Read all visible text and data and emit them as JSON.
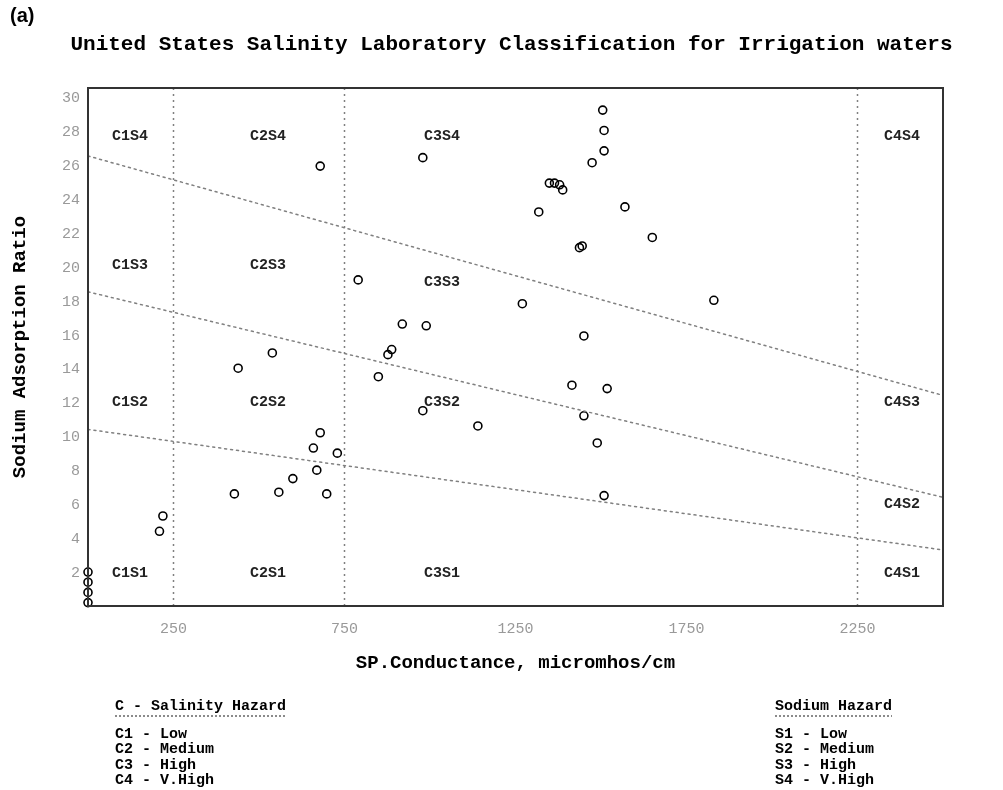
{
  "chart_data": {
    "type": "scatter",
    "title": "United States Salinity Laboratory Classification for Irrigation waters",
    "xlabel": "SP.Conductance, micromhos/cm",
    "ylabel": "Sodium Adsorption Ratio",
    "xlim": [
      0,
      2500
    ],
    "xticks": [
      250,
      750,
      1250,
      1750,
      2250
    ],
    "ylim": [
      0,
      30.5
    ],
    "yticks": [
      2,
      4,
      6,
      8,
      10,
      12,
      14,
      16,
      18,
      20,
      22,
      24,
      26,
      28,
      30
    ],
    "grid": false,
    "marker": "circle",
    "series": [
      {
        "color": "#000000",
        "x": [
          0,
          0,
          0,
          0,
          209,
          219,
          428,
          439,
          539,
          558,
          599,
          659,
          669,
          679,
          679,
          698,
          729,
          790,
          849,
          877,
          888,
          919,
          979,
          979,
          989,
          1140,
          1270,
          1318,
          1349,
          1364,
          1379,
          1388,
          1415,
          1437,
          1445,
          1450,
          1450,
          1474,
          1489,
          1505,
          1509,
          1509,
          1509,
          1518,
          1570,
          1650,
          1830
        ],
        "values": [
          2.0,
          1.4,
          0.8,
          0.2,
          4.4,
          5.3,
          6.6,
          14.0,
          14.9,
          6.7,
          7.5,
          9.3,
          8.0,
          25.9,
          10.2,
          6.6,
          9.0,
          19.2,
          13.5,
          14.8,
          15.1,
          16.6,
          26.4,
          11.5,
          16.5,
          10.6,
          17.8,
          23.2,
          24.9,
          24.9,
          24.8,
          24.5,
          13.0,
          21.1,
          21.2,
          15.9,
          11.2,
          26.1,
          9.6,
          29.2,
          28.0,
          26.8,
          6.5,
          12.8,
          23.5,
          21.7,
          18.0
        ]
      },
      {
        "type": "line",
        "color": "#808080",
        "line_style": "dotted",
        "marker": "none",
        "x": [
          0,
          2500
        ],
        "values": [
          26.5,
          12.4
        ]
      },
      {
        "type": "line",
        "color": "#808080",
        "line_style": "dotted",
        "marker": "none",
        "x": [
          0,
          2500
        ],
        "values": [
          18.5,
          6.4
        ]
      },
      {
        "type": "line",
        "color": "#808080",
        "line_style": "dotted",
        "marker": "none",
        "x": [
          0,
          2500
        ],
        "values": [
          10.4,
          3.3
        ]
      }
    ],
    "ref_lines": [
      {
        "axis": "x",
        "value": 250,
        "color": "#808080",
        "line_style": "dotted"
      },
      {
        "axis": "x",
        "value": 750,
        "color": "#808080",
        "line_style": "dotted"
      },
      {
        "axis": "x",
        "value": 2250,
        "color": "#808080",
        "line_style": "dotted"
      }
    ],
    "annotations": [
      "(a)",
      "C1S4",
      "C2S4",
      "C3S4",
      "C4S4",
      "C1S3",
      "C2S3",
      "C3S3",
      "C1S2",
      "C2S2",
      "C3S2",
      "C4S3",
      "C4S2",
      "C1S1",
      "C2S1",
      "C3S1",
      "C4S1",
      "C - Salinity Hazard",
      "C1 - Low",
      "C2 - Medium",
      "C3 - High",
      "C4 - V.High",
      "Sodium Hazard",
      "S1 - Low",
      "S2 - Medium",
      "S3 - High",
      "S4 - V.High"
    ]
  }
}
